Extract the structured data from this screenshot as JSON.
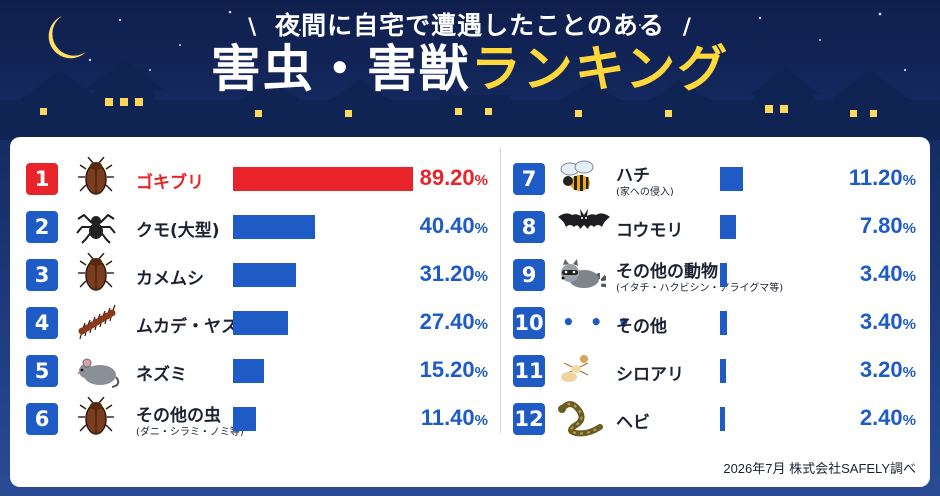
{
  "header": {
    "subtitle": "夜間に自宅で遭遇したことのある",
    "title_white": "害虫・害獣",
    "title_yellow": "ランキング",
    "slash_left": "\\",
    "slash_right": "/"
  },
  "colors": {
    "top_bar": "#e8242a",
    "bar": "#1e5bc4",
    "badge_top": "#e8242a",
    "badge": "#1e5bc4",
    "pct_top": "#e8242a",
    "pct": "#1e5bc4",
    "title_yellow": "#ffd83a"
  },
  "chart_data": {
    "type": "bar",
    "orientation": "horizontal",
    "unit": "%",
    "xlim": [
      0,
      89.2
    ],
    "categories": [
      "ゴキブリ",
      "クモ(大型)",
      "カメムシ",
      "ムカデ・ヤスデ",
      "ネズミ",
      "その他の虫",
      "ハチ",
      "コウモリ",
      "その他の動物",
      "その他",
      "シロアリ",
      "ヘビ"
    ],
    "values": [
      89.2,
      40.4,
      31.2,
      27.4,
      15.2,
      11.4,
      11.2,
      7.8,
      3.4,
      3.4,
      3.2,
      2.4
    ]
  },
  "rankings": [
    {
      "rank": "1",
      "label": "ゴキブリ",
      "sub": "",
      "value": 89.2,
      "pct": "89.20",
      "icon": "cockroach-icon"
    },
    {
      "rank": "2",
      "label": "クモ(大型)",
      "sub": "",
      "value": 40.4,
      "pct": "40.40",
      "icon": "spider-icon"
    },
    {
      "rank": "3",
      "label": "カメムシ",
      "sub": "",
      "value": 31.2,
      "pct": "31.20",
      "icon": "stink-bug-icon"
    },
    {
      "rank": "4",
      "label": "ムカデ・ヤスデ",
      "sub": "",
      "value": 27.4,
      "pct": "27.40",
      "icon": "centipede-icon"
    },
    {
      "rank": "5",
      "label": "ネズミ",
      "sub": "",
      "value": 15.2,
      "pct": "15.20",
      "icon": "mouse-icon"
    },
    {
      "rank": "6",
      "label": "その他の虫",
      "sub": "(ダニ・シラミ・ノミ等)",
      "value": 11.4,
      "pct": "11.40",
      "icon": "bug-icon"
    },
    {
      "rank": "7",
      "label": "ハチ",
      "sub": "(家への侵入)",
      "value": 11.2,
      "pct": "11.20",
      "icon": "bee-icon"
    },
    {
      "rank": "8",
      "label": "コウモリ",
      "sub": "",
      "value": 7.8,
      "pct": "7.80",
      "icon": "bat-icon"
    },
    {
      "rank": "9",
      "label": "その他の動物",
      "sub": "(イタチ・ハクビシン・アライグマ等)",
      "value": 3.4,
      "pct": "3.40",
      "icon": "raccoon-icon"
    },
    {
      "rank": "10",
      "label": "その他",
      "sub": "",
      "value": 3.4,
      "pct": "3.40",
      "icon": "dots-icon"
    },
    {
      "rank": "11",
      "label": "シロアリ",
      "sub": "",
      "value": 3.2,
      "pct": "3.20",
      "icon": "termite-icon"
    },
    {
      "rank": "12",
      "label": "ヘビ",
      "sub": "",
      "value": 2.4,
      "pct": "2.40",
      "icon": "snake-icon"
    }
  ],
  "pct_unit": "%",
  "dots_text": "• • •",
  "footer": {
    "credit": "2026年7月 株式会社SAFELY調べ"
  }
}
